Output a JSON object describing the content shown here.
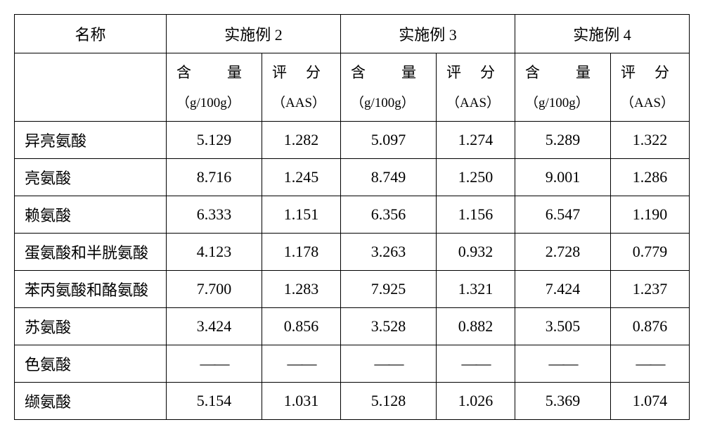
{
  "type": "table",
  "background_color": "#ffffff",
  "border_color": "#000000",
  "font_family": "SimSun",
  "header_fontsize": 22,
  "subheader_fontsize": 21,
  "cell_fontsize": 22,
  "header": {
    "name": "名称",
    "groups": [
      "实施例 2",
      "实施例 3",
      "实施例 4"
    ]
  },
  "subheader": {
    "content": {
      "label_a": "含",
      "label_b": "量",
      "unit": "（g/100g）"
    },
    "score": {
      "label_a": "评",
      "label_b": "分",
      "unit": "（AAS）"
    }
  },
  "rows": [
    {
      "name": "异亮氨酸",
      "v1": "5.129",
      "s1": "1.282",
      "v2": "5.097",
      "s2": "1.274",
      "v3": "5.289",
      "s3": "1.322"
    },
    {
      "name": "亮氨酸",
      "v1": "8.716",
      "s1": "1.245",
      "v2": "8.749",
      "s2": "1.250",
      "v3": "9.001",
      "s3": "1.286"
    },
    {
      "name": "赖氨酸",
      "v1": "6.333",
      "s1": "1.151",
      "v2": "6.356",
      "s2": "1.156",
      "v3": "6.547",
      "s3": "1.190"
    },
    {
      "name": "蛋氨酸和半胱氨酸",
      "v1": "4.123",
      "s1": "1.178",
      "v2": "3.263",
      "s2": "0.932",
      "v3": "2.728",
      "s3": "0.779"
    },
    {
      "name": "苯丙氨酸和酪氨酸",
      "v1": "7.700",
      "s1": "1.283",
      "v2": "7.925",
      "s2": "1.321",
      "v3": "7.424",
      "s3": "1.237"
    },
    {
      "name": "苏氨酸",
      "v1": "3.424",
      "s1": "0.856",
      "v2": "3.528",
      "s2": "0.882",
      "v3": "3.505",
      "s3": "0.876"
    },
    {
      "name": "色氨酸",
      "v1": "——",
      "s1": "——",
      "v2": "——",
      "s2": "——",
      "v3": "——",
      "s3": "——"
    },
    {
      "name": "缬氨酸",
      "v1": "5.154",
      "s1": "1.031",
      "v2": "5.128",
      "s2": "1.026",
      "v3": "5.369",
      "s3": "1.074"
    }
  ]
}
